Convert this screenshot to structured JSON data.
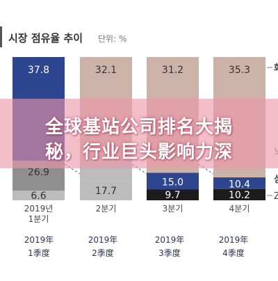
{
  "chart_data": {
    "type": "bar",
    "stacked": true,
    "title": "시장 점유율 추이",
    "unit_note": "단위: %",
    "categories": [
      "2019년 1분기",
      "2분기",
      "3분기",
      "4분기"
    ],
    "series": [
      {
        "name": "화",
        "color": "#2e4590",
        "color_alt": "#cdb2a8",
        "values": [
          37.8,
          32.1,
          31.2,
          35.3
        ]
      },
      {
        "name": "",
        "color": "#ababab",
        "values": [
          26.9,
          17.7,
          15.0,
          10.4
        ]
      },
      {
        "name": "Z",
        "color": "#bdbdbd",
        "color_alt": "#1c1c1c",
        "values": [
          6.6,
          17.7,
          9.7,
          10.2
        ]
      }
    ],
    "data_labels": {
      "top": [
        "37.8",
        "32.1",
        "31.2",
        "35.3"
      ],
      "middle": [
        "26.9",
        "",
        "15.0",
        "10.4"
      ],
      "bottom": [
        "6.6",
        "17.7",
        "9.7",
        "10.2"
      ]
    },
    "legend_fragments": [
      "화",
      "심",
      "노",
      "Z"
    ],
    "grid": false,
    "legend_placement": "right"
  },
  "chart_labels": {
    "x_top_lines": [
      [
        "2019년",
        "1분기"
      ],
      [
        "2분기"
      ],
      [
        "3분기"
      ],
      [
        "4분기"
      ]
    ]
  },
  "overlay": {
    "line1": "全球基站公司排名大揭",
    "line2": "秘，行业巨头影响力深"
  },
  "bottom_labels": [
    {
      "year": "2019年",
      "quarter": "1季度"
    },
    {
      "year": "2019年",
      "quarter": "2季度"
    },
    {
      "year": "2019年",
      "quarter": "3季度"
    },
    {
      "year": "2019年",
      "quarter": "4季度"
    }
  ],
  "colors": {
    "navy": "#2e4590",
    "beige": "#cdb2a8",
    "gray": "#ababab",
    "light_gray": "#bdbdbd",
    "black": "#1c1c1c",
    "text": "#333333",
    "banner": "#ec96aa"
  }
}
